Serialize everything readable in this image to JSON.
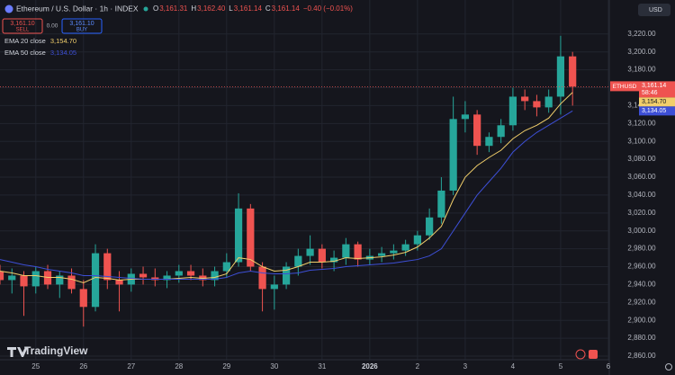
{
  "chart_data": {
    "type": "candlestick",
    "title": "Ethereum / U.S. Dollar · 1h · INDEX",
    "ohlc_header": [
      {
        "label": "O",
        "value": "3,161.31"
      },
      {
        "label": "H",
        "value": "3,162.40"
      },
      {
        "label": "L",
        "value": "3,161.14"
      },
      {
        "label": "C",
        "value": "3,161.14"
      }
    ],
    "change": "−0.40 (−0.01%)",
    "trade_panel": {
      "sell_price": "3,161.10",
      "sell": "SELL",
      "spread": "0.00",
      "buy_price": "3,161.10",
      "buy": "BUY"
    },
    "currency": "USD",
    "symbol_badge": "ETHUSD",
    "last_price_label": "3,161.14",
    "countdown": "58:46",
    "brand": "TradingView",
    "x": [
      24.25,
      24.5,
      24.75,
      25,
      25.25,
      25.5,
      25.75,
      26,
      26.25,
      26.5,
      26.75,
      27,
      27.25,
      27.5,
      27.75,
      28,
      28.25,
      28.5,
      28.75,
      29,
      29.25,
      29.5,
      29.75,
      30,
      30.25,
      30.5,
      30.75,
      31,
      31.25,
      31.5,
      31.75,
      32,
      32.25,
      32.5,
      32.75,
      33,
      33.25,
      33.5,
      33.75,
      34,
      34.25,
      34.5,
      34.75,
      35,
      35.25,
      35.5,
      35.75,
      36,
      36.25
    ],
    "open": [
      2955,
      2945,
      2950,
      2938,
      2955,
      2940,
      2950,
      2935,
      2915,
      2975,
      2945,
      2940,
      2952,
      2948,
      2945,
      2950,
      2955,
      2950,
      2945,
      2955,
      2965,
      3025,
      2960,
      2935,
      2940,
      2960,
      2972,
      2980,
      2965,
      2970,
      2985,
      2968,
      2972,
      2975,
      2978,
      2985,
      2995,
      3015,
      3045,
      3125,
      3130,
      3095,
      3105,
      3118,
      3150,
      3145,
      3138,
      3150,
      3195
    ],
    "high": [
      2962,
      2958,
      2955,
      2960,
      2962,
      2955,
      2958,
      2945,
      2985,
      2980,
      2955,
      2958,
      2960,
      2958,
      2955,
      2962,
      2962,
      2958,
      2960,
      2975,
      3042,
      3030,
      2965,
      2950,
      2965,
      2980,
      2995,
      2985,
      2978,
      2992,
      2988,
      2980,
      2982,
      2985,
      2990,
      3000,
      3025,
      3060,
      3150,
      3145,
      3135,
      3110,
      3125,
      3160,
      3158,
      3152,
      3158,
      3218,
      3200
    ],
    "low": [
      2940,
      2930,
      2905,
      2930,
      2935,
      2925,
      2930,
      2893,
      2910,
      2935,
      2910,
      2932,
      2940,
      2938,
      2936,
      2942,
      2945,
      2938,
      2938,
      2948,
      2960,
      2955,
      2910,
      2912,
      2935,
      2950,
      2962,
      2958,
      2955,
      2962,
      2960,
      2962,
      2965,
      2968,
      2972,
      2978,
      2990,
      3008,
      3040,
      3110,
      3085,
      3088,
      3098,
      3112,
      3135,
      3128,
      3132,
      3130,
      3140
    ],
    "close": [
      2945,
      2950,
      2938,
      2955,
      2940,
      2950,
      2935,
      2915,
      2975,
      2945,
      2940,
      2952,
      2948,
      2945,
      2950,
      2955,
      2950,
      2945,
      2955,
      2965,
      3025,
      2960,
      2935,
      2940,
      2960,
      2972,
      2980,
      2965,
      2970,
      2985,
      2968,
      2972,
      2975,
      2978,
      2985,
      2995,
      3015,
      3045,
      3125,
      3130,
      3095,
      3105,
      3118,
      3150,
      3145,
      3138,
      3150,
      3195,
      3161.14
    ],
    "up_color": "#26a69a",
    "down_color": "#ef5350",
    "series": [
      {
        "name": "EMA 20 close",
        "last_label": "3,154.70",
        "color": "#f2cf6b",
        "values": [
          2955,
          2953,
          2950,
          2950,
          2948,
          2948,
          2946,
          2942,
          2948,
          2947,
          2945,
          2946,
          2946,
          2946,
          2946,
          2947,
          2948,
          2947,
          2948,
          2952,
          2970,
          2968,
          2960,
          2955,
          2956,
          2960,
          2965,
          2965,
          2966,
          2970,
          2969,
          2970,
          2971,
          2973,
          2976,
          2982,
          2992,
          3005,
          3035,
          3060,
          3073,
          3082,
          3090,
          3103,
          3112,
          3118,
          3126,
          3142,
          3154.7
        ]
      },
      {
        "name": "EMA 50 close",
        "last_label": "3,134.05",
        "color": "#3d4fd6",
        "values": [
          2968,
          2965,
          2962,
          2960,
          2957,
          2955,
          2953,
          2950,
          2950,
          2949,
          2948,
          2947,
          2946,
          2946,
          2946,
          2946,
          2946,
          2946,
          2946,
          2948,
          2953,
          2955,
          2953,
          2952,
          2952,
          2953,
          2956,
          2957,
          2958,
          2960,
          2961,
          2962,
          2963,
          2964,
          2966,
          2968,
          2972,
          2980,
          3000,
          3020,
          3040,
          3055,
          3070,
          3088,
          3100,
          3110,
          3118,
          3126,
          3134.05
        ]
      }
    ],
    "xlim": [
      24.25,
      37.02
    ],
    "xticks": [
      25,
      26,
      27,
      28,
      29,
      30,
      31,
      {
        "value": 32,
        "label": "2026"
      },
      {
        "value": 33,
        "label": "2"
      },
      {
        "value": 34,
        "label": "3"
      },
      {
        "value": 35,
        "label": "4"
      },
      {
        "value": 36,
        "label": "5"
      },
      {
        "value": 37,
        "label": "6"
      }
    ],
    "ylim": [
      2856,
      3258
    ],
    "yticks": [
      {
        "value": 2860,
        "label": "2,860.00"
      },
      {
        "value": 2880,
        "label": "2,880.00"
      },
      {
        "value": 2900,
        "label": "2,900.00"
      },
      {
        "value": 2920,
        "label": "2,920.00"
      },
      {
        "value": 2940,
        "label": "2,940.00"
      },
      {
        "value": 2960,
        "label": "2,960.00"
      },
      {
        "value": 2980,
        "label": "2,980.00"
      },
      {
        "value": 3000,
        "label": "3,000.00"
      },
      {
        "value": 3020,
        "label": "3,020.00"
      },
      {
        "value": 3040,
        "label": "3,040.00"
      },
      {
        "value": 3060,
        "label": "3,060.00"
      },
      {
        "value": 3080,
        "label": "3,080.00"
      },
      {
        "value": 3100,
        "label": "3,100.00"
      },
      {
        "value": 3120,
        "label": "3,120.00"
      },
      {
        "value": 3140,
        "label": "3,140.00"
      },
      {
        "value": 3160,
        "label": "3,160.00"
      },
      {
        "value": 3180,
        "label": "3,180.00"
      },
      {
        "value": 3200,
        "label": "3,200.00"
      },
      {
        "value": 3220,
        "label": "3,220.00"
      }
    ],
    "grid": true
  }
}
